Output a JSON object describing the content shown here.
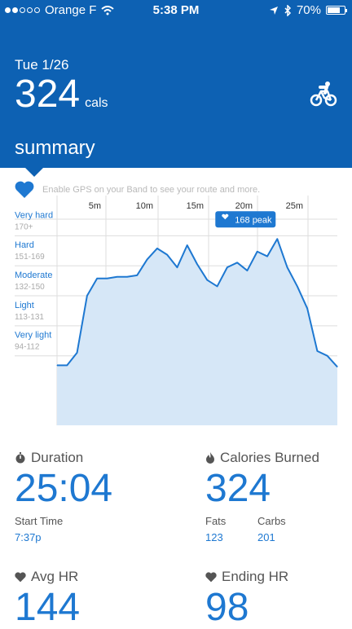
{
  "status_bar": {
    "carrier": "Orange F",
    "time": "5:38 PM",
    "battery": "70%",
    "signal_bars": 2
  },
  "header": {
    "date": "Tue 1/26",
    "calories_value": "324",
    "calories_unit": "cals",
    "activity_icon": "bike-icon",
    "section_title": "summary"
  },
  "gps_note": "Enable GPS on your Band to see your route and more.",
  "colors": {
    "brand_blue": "#0d61b3",
    "accent_blue": "#1e78d1",
    "area_fill": "#d6e7f7"
  },
  "chart_data": {
    "type": "area",
    "x_ticks": [
      "5m",
      "10m",
      "15m",
      "20m",
      "25m"
    ],
    "zones": [
      {
        "name": "Very hard",
        "range": "170+"
      },
      {
        "name": "Hard",
        "range": "151-169"
      },
      {
        "name": "Moderate",
        "range": "132-150"
      },
      {
        "name": "Light",
        "range": "113-131"
      },
      {
        "name": "Very light",
        "range": "94-112"
      }
    ],
    "peak_label": "168 peak",
    "x": [
      0,
      1,
      2,
      3,
      4,
      5,
      6,
      7,
      8,
      9,
      10,
      11,
      12,
      13,
      14,
      15,
      16,
      17,
      18,
      19,
      20,
      21,
      22,
      23,
      24,
      25,
      26,
      27,
      28
    ],
    "y": [
      88,
      88,
      96,
      132,
      143,
      143,
      144,
      144,
      145,
      155,
      162,
      158,
      150,
      164,
      152,
      142,
      138,
      150,
      153,
      148,
      160,
      157,
      168,
      150,
      138,
      124,
      97,
      94,
      87
    ],
    "ylim": [
      50,
      180
    ],
    "xlim": [
      0,
      28
    ]
  },
  "stats": {
    "duration": {
      "label": "Duration",
      "value": "25:04",
      "icon": "stopwatch-icon"
    },
    "calories": {
      "label": "Calories Burned",
      "value": "324",
      "icon": "flame-icon"
    },
    "start_time": {
      "label": "Start Time",
      "value": "7:37p"
    },
    "fats": {
      "label": "Fats",
      "value": "123"
    },
    "carbs": {
      "label": "Carbs",
      "value": "201"
    },
    "avg_hr": {
      "label": "Avg HR",
      "value": "144",
      "icon": "heart-icon"
    },
    "ending_hr": {
      "label": "Ending HR",
      "value": "98",
      "icon": "heart-icon"
    }
  }
}
